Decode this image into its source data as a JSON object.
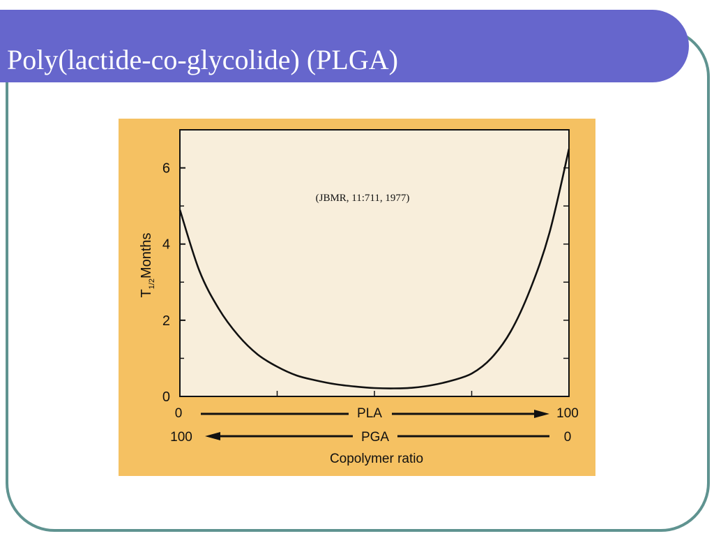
{
  "slide": {
    "title": "Poly(lactide-co-glycolide) (PLGA)"
  },
  "colors": {
    "title_bar": "#6666cc",
    "frame_border": "#5f9390",
    "figure_bg": "#f5c162",
    "plot_bg": "#f8eedb",
    "curve": "#111111"
  },
  "chart_data": {
    "type": "line",
    "annotation": "(JBMR, 11:711, 1977)",
    "ylabel_main": "T",
    "ylabel_sub": "1/2",
    "ylabel_unit": "Months",
    "xlabel": "Copolymer ratio",
    "ylim": [
      0,
      7
    ],
    "xlim": [
      0,
      100
    ],
    "y_ticks": [
      "0",
      "2",
      "4",
      "6"
    ],
    "y_tick_values": [
      0,
      2,
      4,
      6
    ],
    "x_axis_rows": [
      {
        "left": "0",
        "label": "PLA",
        "right": "100",
        "arrow": "right"
      },
      {
        "left": "100",
        "label": "PGA",
        "right": "0",
        "arrow": "left"
      }
    ],
    "series": [
      {
        "x": [
          0,
          5,
          10,
          15,
          20,
          25,
          30,
          35,
          40,
          45,
          50,
          55,
          60,
          65,
          70,
          75,
          80,
          85,
          90,
          95,
          100
        ],
        "y": [
          4.9,
          3.3,
          2.3,
          1.6,
          1.1,
          0.78,
          0.55,
          0.42,
          0.32,
          0.26,
          0.22,
          0.21,
          0.23,
          0.3,
          0.42,
          0.6,
          1.0,
          1.7,
          2.8,
          4.3,
          6.5
        ]
      }
    ]
  }
}
